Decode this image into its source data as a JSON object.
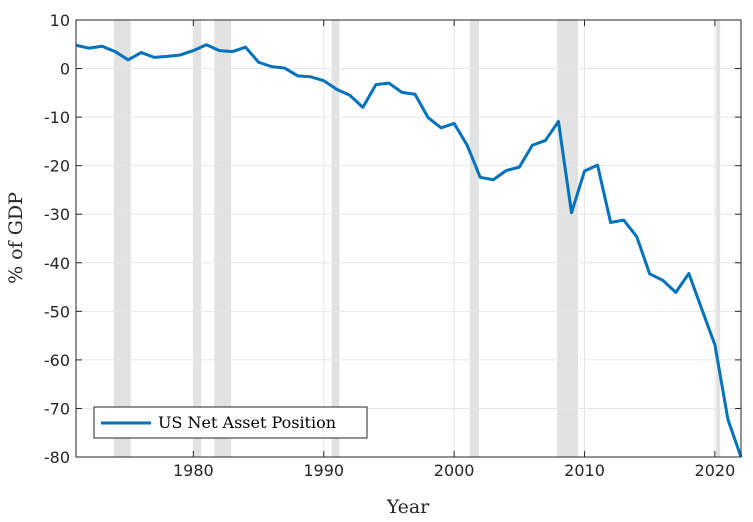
{
  "chart_data": {
    "type": "line",
    "xlabel": "Year",
    "ylabel": "% of GDP",
    "xlim": [
      1971,
      2022
    ],
    "ylim": [
      -80,
      10
    ],
    "x_ticks": [
      1980,
      1990,
      2000,
      2010,
      2020
    ],
    "y_ticks": [
      10,
      0,
      -10,
      -20,
      -30,
      -40,
      -50,
      -60,
      -70,
      -80
    ],
    "grid": true,
    "legend_position": "bottom-left",
    "recession_periods": [
      [
        1973.9,
        1975.2
      ],
      [
        1980.0,
        1980.6
      ],
      [
        1981.6,
        1982.9
      ],
      [
        1990.6,
        1991.2
      ],
      [
        2001.2,
        2001.9
      ],
      [
        2007.9,
        2009.5
      ],
      [
        2020.1,
        2020.4
      ]
    ],
    "series": [
      {
        "name": "US Net Asset Position",
        "color": "#0072BD",
        "x": [
          1971,
          1972,
          1973,
          1974,
          1975,
          1976,
          1977,
          1978,
          1979,
          1980,
          1981,
          1982,
          1983,
          1984,
          1985,
          1986,
          1987,
          1988,
          1989,
          1990,
          1991,
          1992,
          1993,
          1994,
          1995,
          1996,
          1997,
          1998,
          1999,
          2000,
          2001,
          2002,
          2003,
          2004,
          2005,
          2006,
          2007,
          2008,
          2009,
          2010,
          2011,
          2012,
          2013,
          2014,
          2015,
          2016,
          2017,
          2018,
          2019,
          2020,
          2021,
          2022
        ],
        "values": [
          4.8,
          4.2,
          4.6,
          3.5,
          1.8,
          3.3,
          2.3,
          2.5,
          2.8,
          3.7,
          4.9,
          3.7,
          3.5,
          4.4,
          1.3,
          0.4,
          0.1,
          -1.5,
          -1.7,
          -2.5,
          -4.3,
          -5.5,
          -8,
          -3.3,
          -3,
          -4.9,
          -5.3,
          -10.1,
          -12.2,
          -11.3,
          -15.8,
          -22.4,
          -22.9,
          -21,
          -20.3,
          -15.8,
          -14.8,
          -10.9,
          -29.7,
          -21.1,
          -19.9,
          -31.7,
          -31.2,
          -34.6,
          -42.3,
          -43.6,
          -46.1,
          -42.2,
          -49.6,
          -56.9,
          -72.3,
          -80
        ]
      }
    ]
  }
}
